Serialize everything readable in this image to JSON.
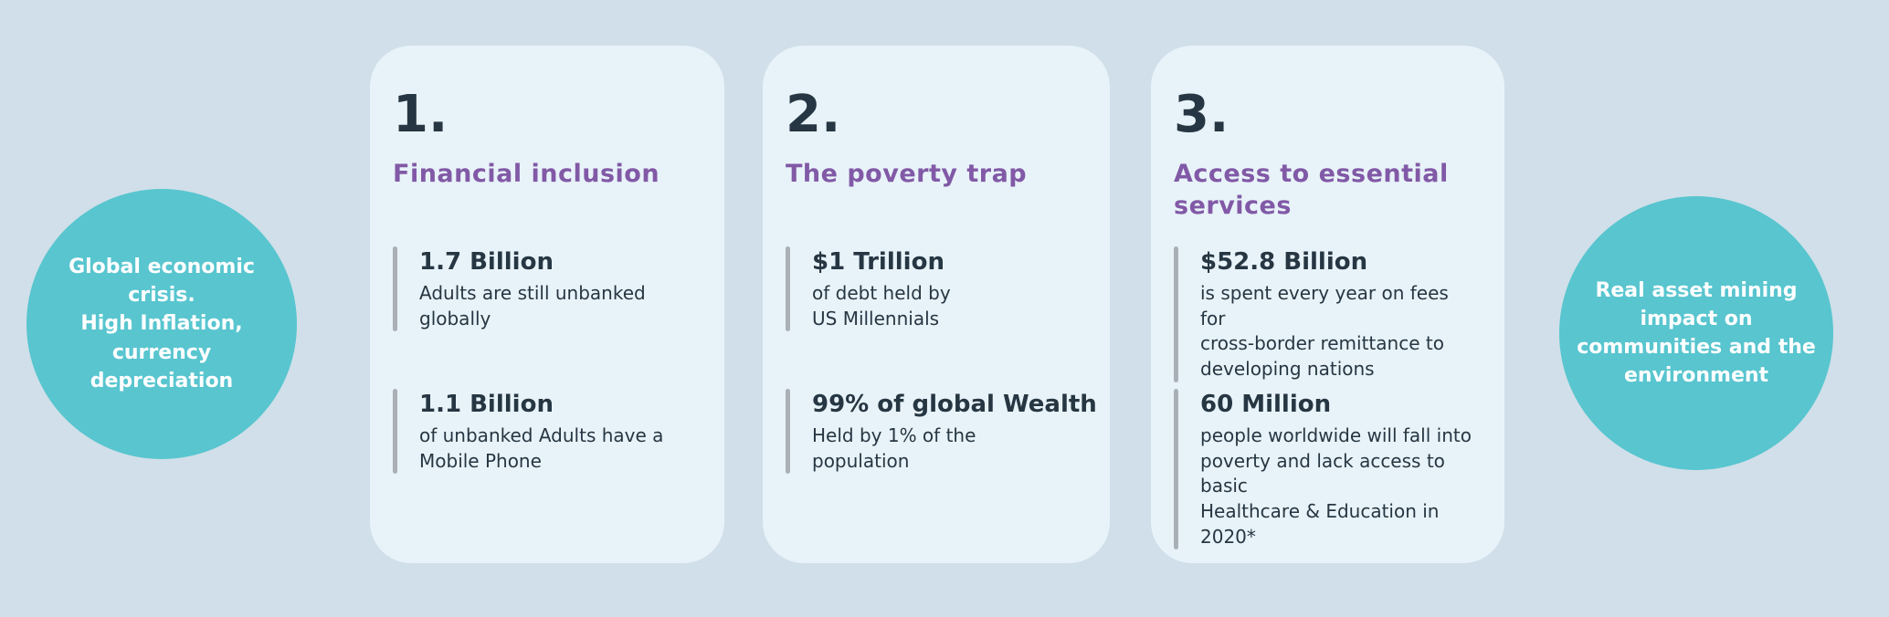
{
  "colors": {
    "page_bg": "#d0dfe9",
    "card_bg": "#e8f3f9",
    "teal": "#58c5cf",
    "purple": "#8159a6",
    "dark": "#263642",
    "bar_gray": "#a9b0b6",
    "white": "#ffffff"
  },
  "left_circle": {
    "text": "Global economic\ncrisis.\nHigh Inflation,\ncurrency\ndepreciation"
  },
  "right_circle": {
    "text": "Real asset  mining\nimpact on\ncommunities and the\nenvironment"
  },
  "cards": [
    {
      "number": "1.",
      "title": "Financial inclusion",
      "stats": [
        {
          "value": "1.7 Billion",
          "description": "Adults are still unbanked\nglobally"
        },
        {
          "value": "1.1 Billion",
          "description": "of unbanked Adults have a\nMobile Phone"
        }
      ]
    },
    {
      "number": "2.",
      "title": "The poverty trap",
      "stats": [
        {
          "value": "$1 Trillion",
          "description": "of debt held by\nUS Millennials"
        },
        {
          "value": "99% of global Wealth",
          "description": "Held by 1% of the\npopulation"
        }
      ]
    },
    {
      "number": "3.",
      "title": "Access to essential\nservices",
      "stats": [
        {
          "value": "$52.8 Billion",
          "description": "is spent every year on fees for\ncross-border remittance to\ndeveloping nations"
        },
        {
          "value": "60 Million",
          "description": "people worldwide will fall into\npoverty and lack access to basic\nHealthcare & Education in 2020*"
        }
      ]
    }
  ]
}
